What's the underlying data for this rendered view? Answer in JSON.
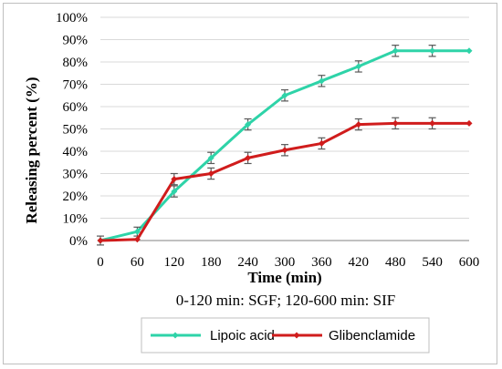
{
  "chart_data": {
    "type": "line",
    "x": [
      0,
      60,
      120,
      180,
      240,
      300,
      360,
      420,
      480,
      540,
      600
    ],
    "xlabel": "Time (min)",
    "ylabel": "Releasing percent (%)",
    "ylim": [
      0,
      100
    ],
    "xlim": [
      0,
      600
    ],
    "x_ticks": [
      "0",
      "60",
      "120",
      "180",
      "240",
      "300",
      "360",
      "420",
      "480",
      "540",
      "600"
    ],
    "y_ticks": [
      "0%",
      "10%",
      "20%",
      "30%",
      "40%",
      "50%",
      "60%",
      "70%",
      "80%",
      "90%",
      "100%"
    ],
    "note": "0-120 min: SGF; 120-600 min: SIF",
    "grid": "horizontal",
    "legend_position": "bottom",
    "series": [
      {
        "name": "Lipoic acid",
        "color": "#2ed3a8",
        "values": [
          0,
          4,
          22,
          37,
          52,
          65,
          71.5,
          78,
          85,
          85,
          85
        ],
        "errors": [
          2,
          2,
          2.5,
          2.5,
          2.5,
          2.5,
          2.5,
          2.5,
          2.5,
          2.5,
          0
        ]
      },
      {
        "name": "Glibenclamide",
        "color": "#d01c1c",
        "values": [
          0,
          0.5,
          27.5,
          30,
          37,
          40.5,
          43.5,
          52,
          52.5,
          52.5,
          52.5
        ],
        "errors": [
          0,
          0,
          2.5,
          2.5,
          2.5,
          2.5,
          2.5,
          2.5,
          2.5,
          2.5,
          0
        ]
      }
    ]
  }
}
